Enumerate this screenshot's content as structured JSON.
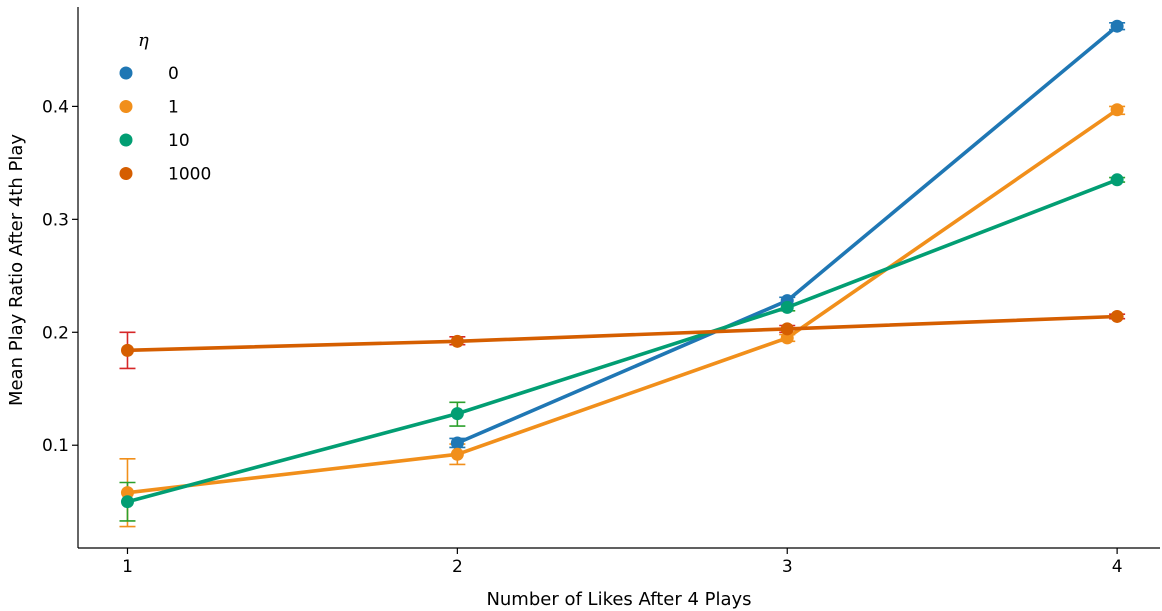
{
  "chart_data": {
    "type": "line",
    "xlabel": "Number of Likes After 4 Plays",
    "ylabel": "Mean Play Ratio After 4th Play",
    "x": [
      1,
      2,
      3,
      4
    ],
    "x_ticks": [
      "1",
      "2",
      "3",
      "4"
    ],
    "y_ticks": [
      "0.1",
      "0.2",
      "0.3",
      "0.4"
    ],
    "xlim": [
      0.85,
      4.13
    ],
    "ylim": [
      0.009,
      0.488
    ],
    "grid": false,
    "legend": {
      "title": "η",
      "placement": "top-left"
    },
    "series": [
      {
        "name": "0",
        "color": "#1f77b4",
        "errcolor": "#1f77b4",
        "points": [
          {
            "x": 2,
            "y": 0.102,
            "lo": 0.098,
            "hi": 0.106
          },
          {
            "x": 3,
            "y": 0.228,
            "lo": 0.225,
            "hi": 0.231
          },
          {
            "x": 4,
            "y": 0.471,
            "lo": 0.468,
            "hi": 0.474
          }
        ]
      },
      {
        "name": "1",
        "color": "#f18f1b",
        "errcolor": "#f18f1b",
        "points": [
          {
            "x": 1,
            "y": 0.058,
            "lo": 0.028,
            "hi": 0.088
          },
          {
            "x": 2,
            "y": 0.092,
            "lo": 0.083,
            "hi": 0.101
          },
          {
            "x": 3,
            "y": 0.195,
            "lo": 0.192,
            "hi": 0.198
          },
          {
            "x": 4,
            "y": 0.397,
            "lo": 0.393,
            "hi": 0.4
          }
        ]
      },
      {
        "name": "10",
        "color": "#029e73",
        "errcolor": "#2ca02c",
        "points": [
          {
            "x": 1,
            "y": 0.05,
            "lo": 0.033,
            "hi": 0.067
          },
          {
            "x": 2,
            "y": 0.128,
            "lo": 0.117,
            "hi": 0.138
          },
          {
            "x": 3,
            "y": 0.222,
            "lo": 0.219,
            "hi": 0.225
          },
          {
            "x": 4,
            "y": 0.335,
            "lo": 0.333,
            "hi": 0.337
          }
        ]
      },
      {
        "name": "1000",
        "color": "#d55e00",
        "errcolor": "#d62728",
        "points": [
          {
            "x": 1,
            "y": 0.184,
            "lo": 0.168,
            "hi": 0.2
          },
          {
            "x": 2,
            "y": 0.192,
            "lo": 0.189,
            "hi": 0.196
          },
          {
            "x": 3,
            "y": 0.203,
            "lo": 0.2,
            "hi": 0.206
          },
          {
            "x": 4,
            "y": 0.214,
            "lo": 0.212,
            "hi": 0.216
          }
        ]
      }
    ]
  }
}
